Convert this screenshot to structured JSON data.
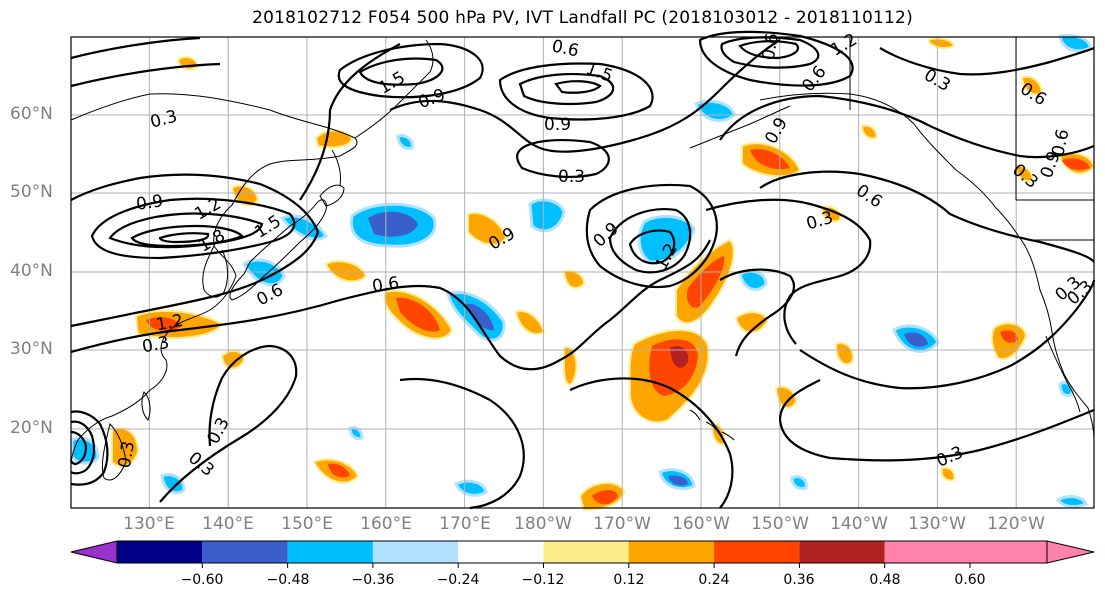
{
  "title": "2018102712 F054 500 hPa PV, IVT Landfall PC (2018103012 - 2018110112)",
  "lat_labels": [
    "60°N",
    "50°N",
    "40°N",
    "30°N",
    "20°N"
  ],
  "lon_labels": [
    "130°E",
    "140°E",
    "150°E",
    "160°E",
    "170°E",
    "180°W",
    "170°W",
    "160°W",
    "150°W",
    "140°W",
    "130°W",
    "120°W"
  ],
  "colorbar": {
    "colors": [
      "#9932cc",
      "#00008b",
      "#3a5fcd",
      "#00bfff",
      "#b0e2ff",
      "#ffffff",
      "#ffec8b",
      "#ffa500",
      "#ff4500",
      "#b22222",
      "#ff82ab"
    ],
    "ticks": [
      "−0.60",
      "−0.48",
      "−0.36",
      "−0.24",
      "−0.12",
      "0.12",
      "0.24",
      "0.36",
      "0.48",
      "0.60"
    ]
  },
  "contour_labels": [
    {
      "text": "0.3"
    },
    {
      "text": "0.6"
    },
    {
      "text": "0.9"
    },
    {
      "text": "1.2"
    },
    {
      "text": "1.5"
    },
    {
      "text": "1.8"
    },
    {
      "text": "0.9"
    },
    {
      "text": "1.2"
    },
    {
      "text": "1.5"
    },
    {
      "text": "0.6"
    },
    {
      "text": "0.3"
    },
    {
      "text": "0.6"
    },
    {
      "text": "0.9"
    },
    {
      "text": "1.5"
    },
    {
      "text": "0.9"
    },
    {
      "text": "0.6"
    },
    {
      "text": "1.2"
    },
    {
      "text": "0.3"
    },
    {
      "text": "0.9"
    },
    {
      "text": "0.9"
    },
    {
      "text": "1.2"
    },
    {
      "text": "0.9"
    },
    {
      "text": "0.6"
    },
    {
      "text": "0.3"
    },
    {
      "text": "0.3"
    },
    {
      "text": "0.6"
    },
    {
      "text": "0.3"
    },
    {
      "text": "0.3"
    },
    {
      "text": "0.3"
    },
    {
      "text": "0.3"
    },
    {
      "text": "0.6"
    },
    {
      "text": "0.3"
    },
    {
      "text": "0.3"
    },
    {
      "text": "0.6"
    },
    {
      "text": "0.3"
    }
  ],
  "colors": {
    "land_line": "#000000",
    "grid": "#b0b0b0",
    "axis_text": "#808080"
  }
}
